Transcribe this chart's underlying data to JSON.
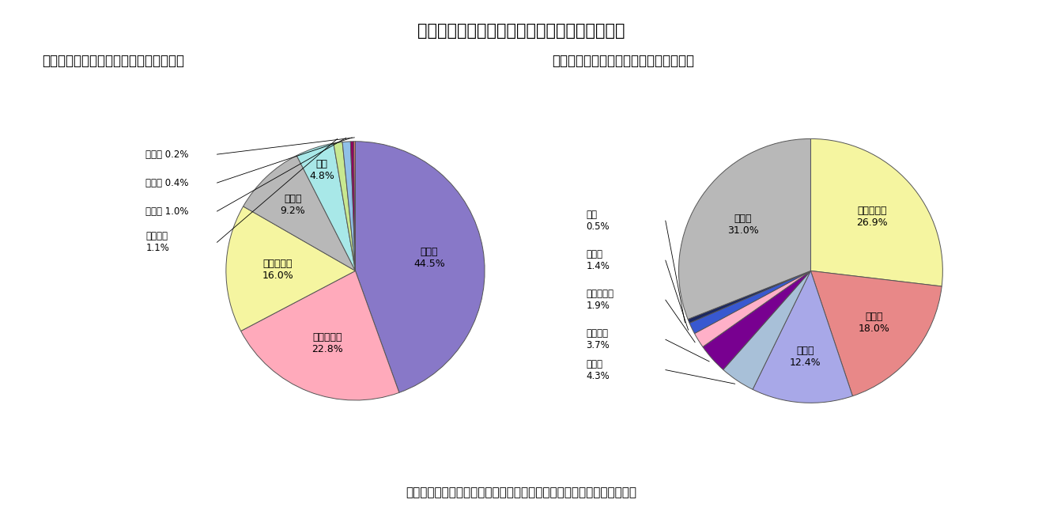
{
  "title": "図２　日本人の国際結婚における配偶者の国籍",
  "subtitle_a": "（ａ）　日本人男性の外国人の妻の国籍",
  "subtitle_b": "（ｂ）　日本人女性の外国人の夫の国籍",
  "footnote": "（資料）　厘生労働省「人口動態統計」から、ニッセイ基礎研究所作成",
  "chart_a": {
    "labels": [
      "中　国",
      "フィリピン",
      "韓国・朝鮮",
      "その他",
      "タイ",
      "ブラジル",
      "米　国",
      "ペルー",
      "英　国"
    ],
    "values": [
      44.5,
      22.8,
      16.0,
      9.2,
      4.8,
      1.1,
      1.0,
      0.4,
      0.2
    ],
    "colors": [
      "#8878c8",
      "#ffaabb",
      "#f5f5a0",
      "#b8b8b8",
      "#a8e8e8",
      "#c8e890",
      "#90c0e8",
      "#900060",
      "#e07070"
    ],
    "start_angle": 90,
    "counterclock": false
  },
  "chart_b": {
    "labels": [
      "韓国・朝鮮",
      "米　国",
      "中　国",
      "英　国",
      "ブラジル",
      "フィリピン",
      "ペルー",
      "タイ",
      "その他"
    ],
    "values": [
      26.9,
      18.0,
      12.4,
      4.3,
      3.7,
      1.9,
      1.4,
      0.5,
      31.0
    ],
    "colors": [
      "#f5f5a0",
      "#e88888",
      "#a8a8e8",
      "#a8c0d8",
      "#780090",
      "#ffb0c8",
      "#3858d0",
      "#1c2860",
      "#b8b8b8"
    ],
    "start_angle": 90,
    "counterclock": false
  }
}
